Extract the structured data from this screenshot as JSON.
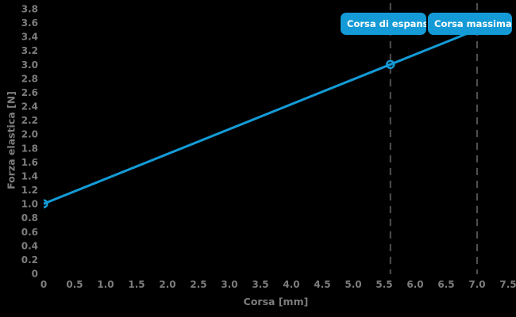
{
  "page": {
    "background": "#000000"
  },
  "colors": {
    "accent_blue": "#149bd7",
    "tick_gray": "#7d7d7d",
    "dash_gray": "#4f4f4f",
    "badge_text": "#ffffff"
  },
  "chart_data": {
    "type": "line",
    "title": "",
    "xlabel": "Corsa [mm]",
    "ylabel": "Forza elastica [N]",
    "xlim": [
      0,
      7.5
    ],
    "ylim": [
      0,
      3.8
    ],
    "grid": false,
    "legend": "none",
    "xtick_values": [
      0,
      0.5,
      1.0,
      1.5,
      2.0,
      2.5,
      3.0,
      3.5,
      4.0,
      4.5,
      5.0,
      5.5,
      6.0,
      6.5,
      7.0,
      7.5
    ],
    "xtick_labels": [
      "0",
      "0.5",
      "1.0",
      "1.5",
      "2.0",
      "2.5",
      "3.0",
      "3.5",
      "4.0",
      "4.5",
      "5.0",
      "5.5",
      "6.0",
      "6.5",
      "7.0",
      "7.5"
    ],
    "ytick_values": [
      0,
      0.2,
      0.4,
      0.6,
      0.8,
      1.0,
      1.2,
      1.4,
      1.6,
      1.8,
      2.0,
      2.2,
      2.4,
      2.6,
      2.8,
      3.0,
      3.2,
      3.4,
      3.6,
      3.8
    ],
    "ytick_labels": [
      "0",
      "0.2",
      "0.4",
      "0.6",
      "0.8",
      "1.0",
      "1.2",
      "1.4",
      "1.6",
      "1.8",
      "2.0",
      "2.2",
      "2.4",
      "2.6",
      "2.8",
      "3.0",
      "3.2",
      "3.4",
      "3.6",
      "3.8"
    ],
    "series": [
      {
        "name": "Forza elastica",
        "color": "#149bd7",
        "x": [
          0,
          5.6,
          7.0
        ],
        "y": [
          1.0,
          3.0,
          3.5
        ],
        "marker_points": [
          [
            0,
            1.0
          ],
          [
            5.6,
            3.0
          ]
        ],
        "marker_style": "open-circle"
      }
    ],
    "reference_lines": [
      {
        "x": 5.6,
        "label": "Corsa di espansione",
        "style": "dashed"
      },
      {
        "x": 7.0,
        "label": "Corsa massima",
        "style": "dashed"
      }
    ]
  }
}
